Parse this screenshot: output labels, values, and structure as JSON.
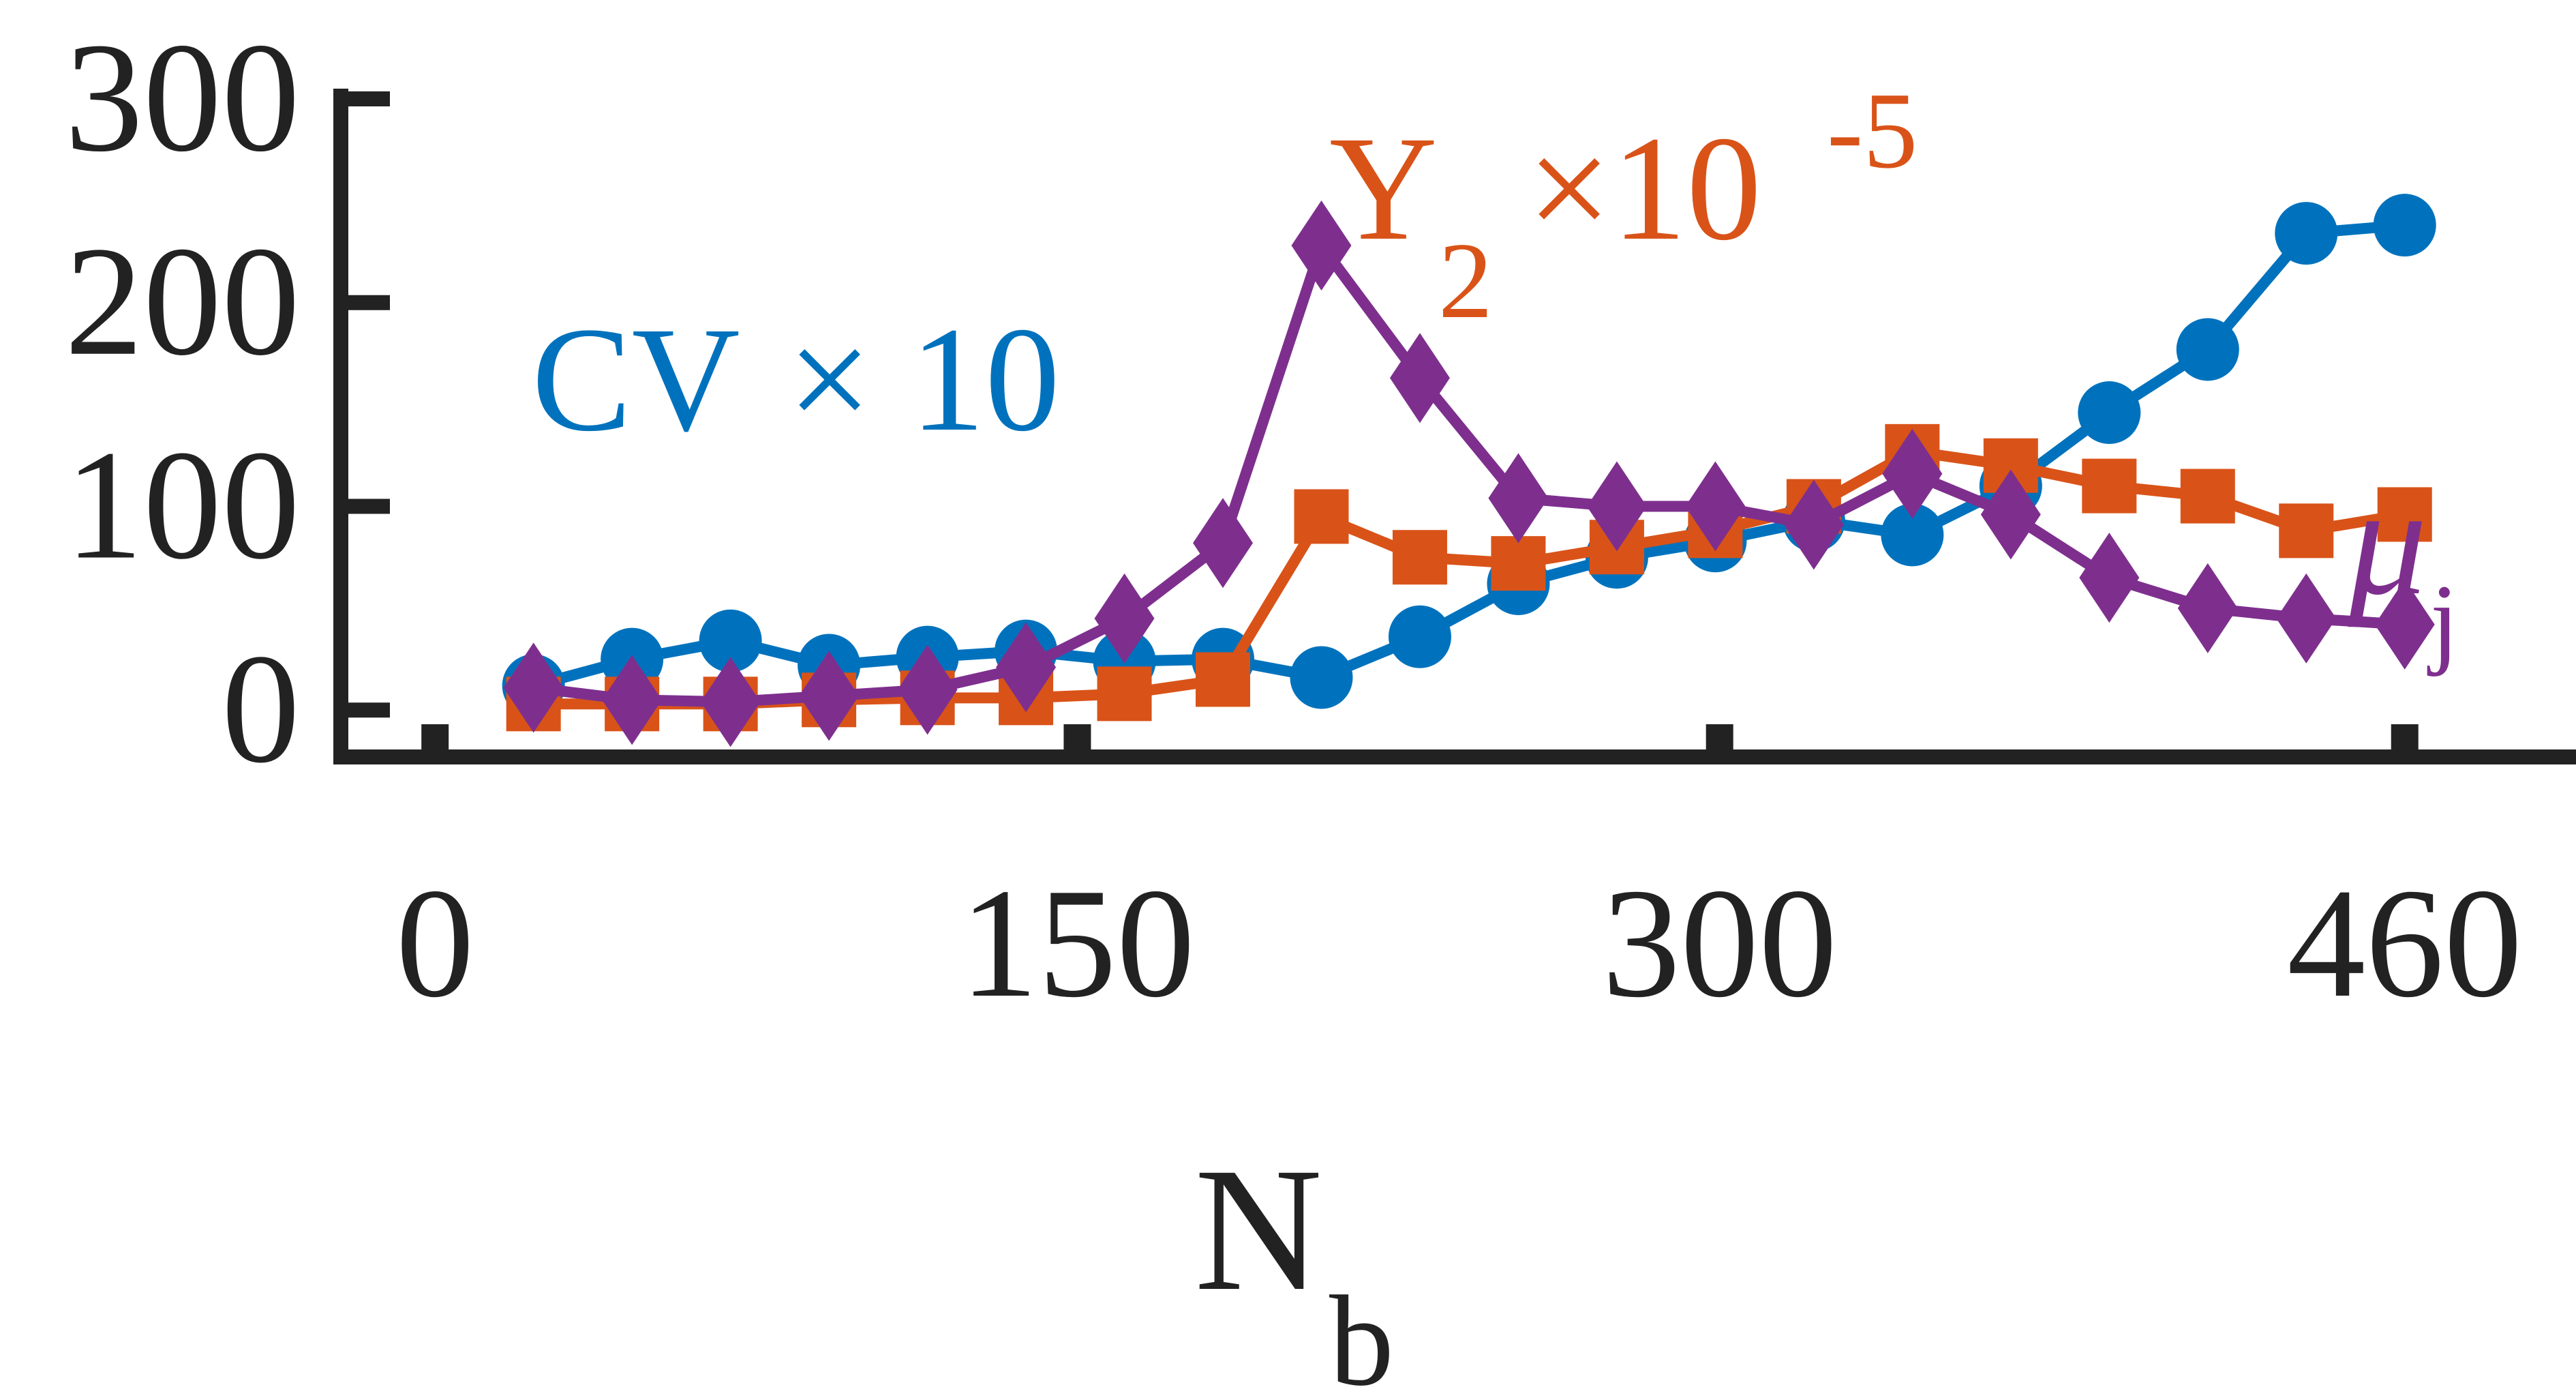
{
  "chart_data": {
    "type": "line",
    "title": "",
    "xlabel": "N",
    "xlabel_sub": "b",
    "ylabel": "",
    "xlim": [
      -22,
      500
    ],
    "ylim": [
      -23,
      305
    ],
    "xticks": [
      0,
      150,
      300,
      460
    ],
    "xtick_labels": [
      "0",
      "150",
      "300",
      "460"
    ],
    "yticks": [
      0,
      100,
      200,
      300
    ],
    "ytick_labels": [
      "0",
      "100",
      "200",
      "300"
    ],
    "grid": false,
    "legend": "none (series labelled inline)",
    "x": [
      23,
      46,
      69,
      92,
      115,
      138,
      161,
      184,
      207,
      230,
      253,
      276,
      299,
      322,
      345,
      368,
      391,
      414,
      437,
      460
    ],
    "series": [
      {
        "name": "CV×10",
        "name_parts": [
          "CV",
          "×",
          "10"
        ],
        "color": "#0072BD",
        "marker": "circle",
        "values": [
          12,
          25,
          34,
          22,
          26,
          29,
          24,
          25,
          16,
          36,
          62,
          75,
          83,
          93,
          86,
          110,
          146,
          177,
          234,
          238
        ]
      },
      {
        "name": "Y₂×10⁻⁵",
        "name_parts": [
          "Y",
          "2",
          "×10",
          "-5"
        ],
        "color": "#D95319",
        "marker": "square",
        "values": [
          3,
          3,
          3,
          5,
          6,
          6,
          8,
          15,
          95,
          75,
          72,
          80,
          88,
          100,
          127,
          120,
          110,
          105,
          88,
          96
        ]
      },
      {
        "name": "μⱼ",
        "name_parts": [
          "μ",
          "j"
        ],
        "color": "#7E2F8E",
        "marker": "diamond",
        "values": [
          11,
          5,
          4,
          7,
          10,
          21,
          45,
          82,
          228,
          163,
          104,
          100,
          100,
          91,
          116,
          96,
          65,
          50,
          45,
          42
        ]
      }
    ]
  }
}
